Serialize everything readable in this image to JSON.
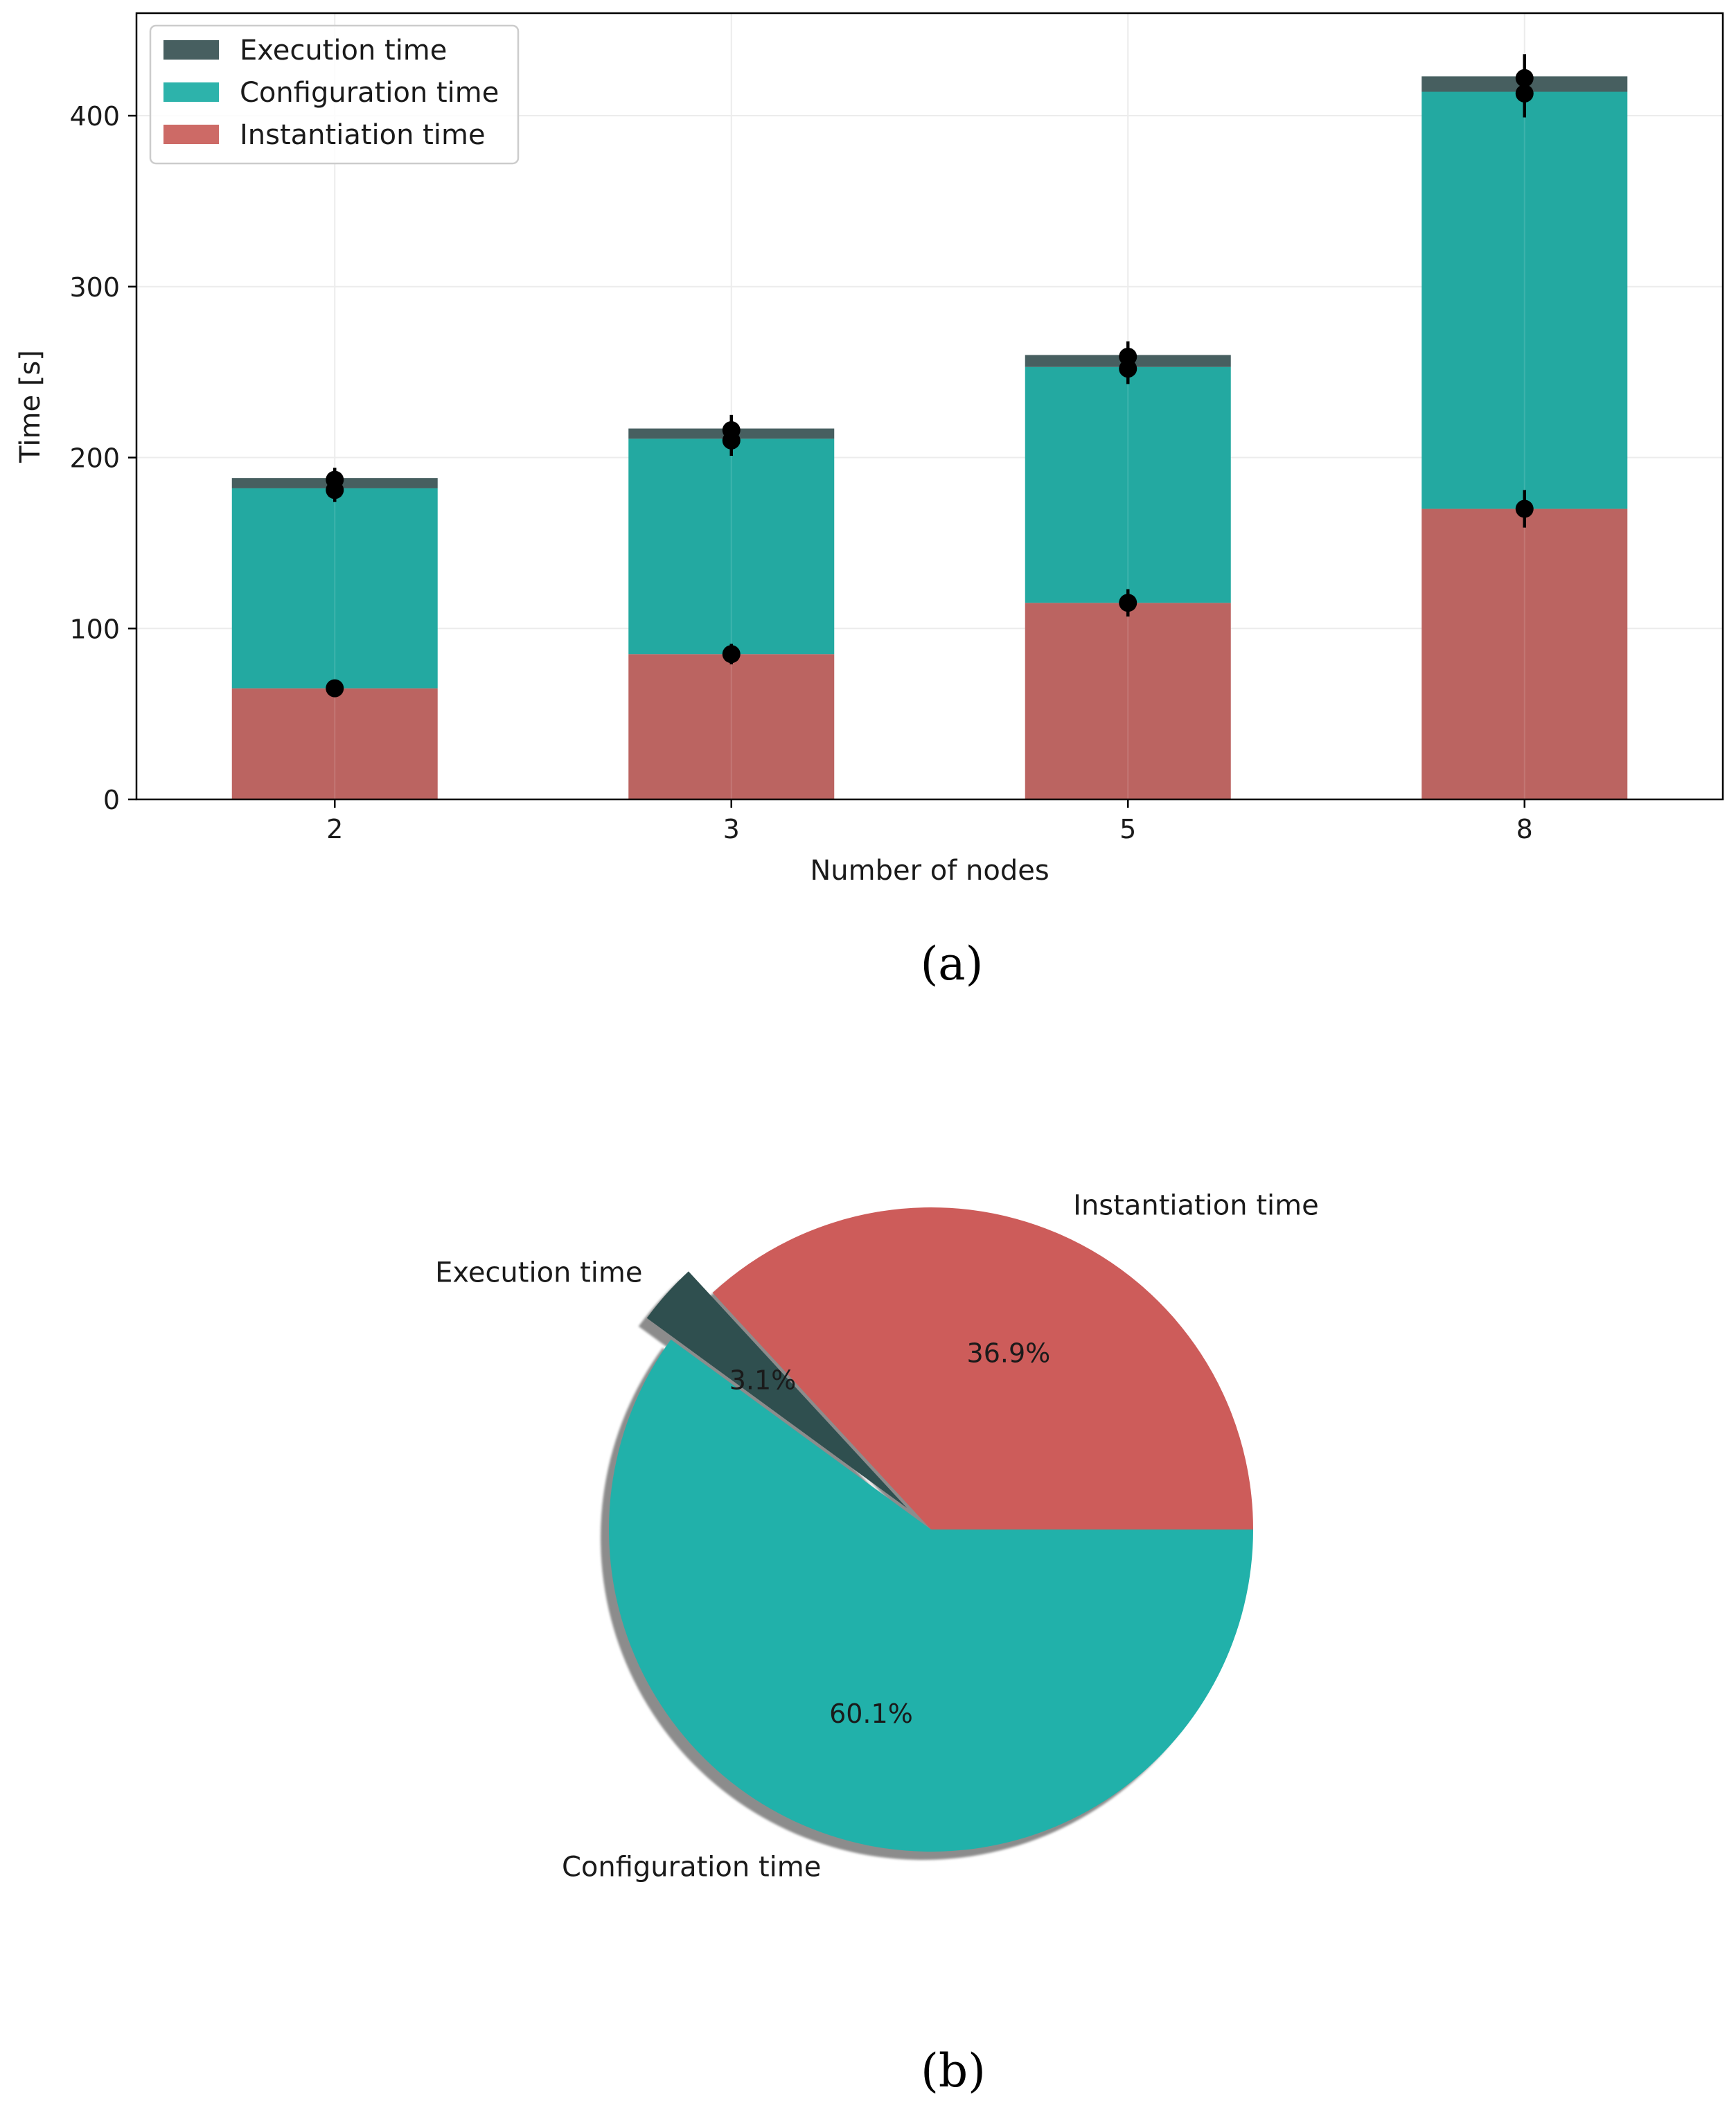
{
  "chart_data": [
    {
      "type": "bar",
      "stacked": true,
      "caption": "(a)",
      "xlabel": "Number of nodes",
      "ylabel": "Time [s]",
      "categories": [
        "2",
        "3",
        "5",
        "8"
      ],
      "ylim": [
        0,
        460
      ],
      "yticks": [
        0,
        100,
        200,
        300,
        400
      ],
      "grid": true,
      "legend_position": "top-left",
      "series": [
        {
          "name": "Instantiation time",
          "color": "#bb6461",
          "legend_color": "#cd6a66",
          "values": [
            65,
            85,
            115,
            170
          ]
        },
        {
          "name": "Configuration time",
          "color": "#23a9a1",
          "legend_color": "#2db3ab",
          "values": [
            117,
            126,
            138,
            244
          ]
        },
        {
          "name": "Execution time",
          "color": "#475f60",
          "legend_color": "#475f60",
          "values": [
            6,
            6,
            7,
            9
          ]
        }
      ],
      "error_markers": [
        {
          "category": "2",
          "points": [
            {
              "value": 65,
              "err": 5
            },
            {
              "value": 181,
              "err": 7
            },
            {
              "value": 187,
              "err": 7
            }
          ]
        },
        {
          "category": "3",
          "points": [
            {
              "value": 85,
              "err": 6
            },
            {
              "value": 210,
              "err": 9
            },
            {
              "value": 216,
              "err": 9
            }
          ]
        },
        {
          "category": "5",
          "points": [
            {
              "value": 115,
              "err": 8
            },
            {
              "value": 252,
              "err": 9
            },
            {
              "value": 259,
              "err": 9
            }
          ]
        },
        {
          "category": "8",
          "points": [
            {
              "value": 170,
              "err": 11
            },
            {
              "value": 413,
              "err": 14
            },
            {
              "value": 422,
              "err": 14
            }
          ]
        }
      ]
    },
    {
      "type": "pie",
      "caption": "(b)",
      "shadow": true,
      "slices": [
        {
          "label": "Instantiation time",
          "value": 36.9,
          "pct_label": "36.9%",
          "color": "#cd5c5a"
        },
        {
          "label": "Execution time",
          "value": 3.1,
          "pct_label": "3.1%",
          "color": "#2f4f4f",
          "exploded": true
        },
        {
          "label": "Configuration time",
          "value": 60.1,
          "pct_label": "60.1%",
          "color": "#21b1aa"
        }
      ]
    }
  ]
}
